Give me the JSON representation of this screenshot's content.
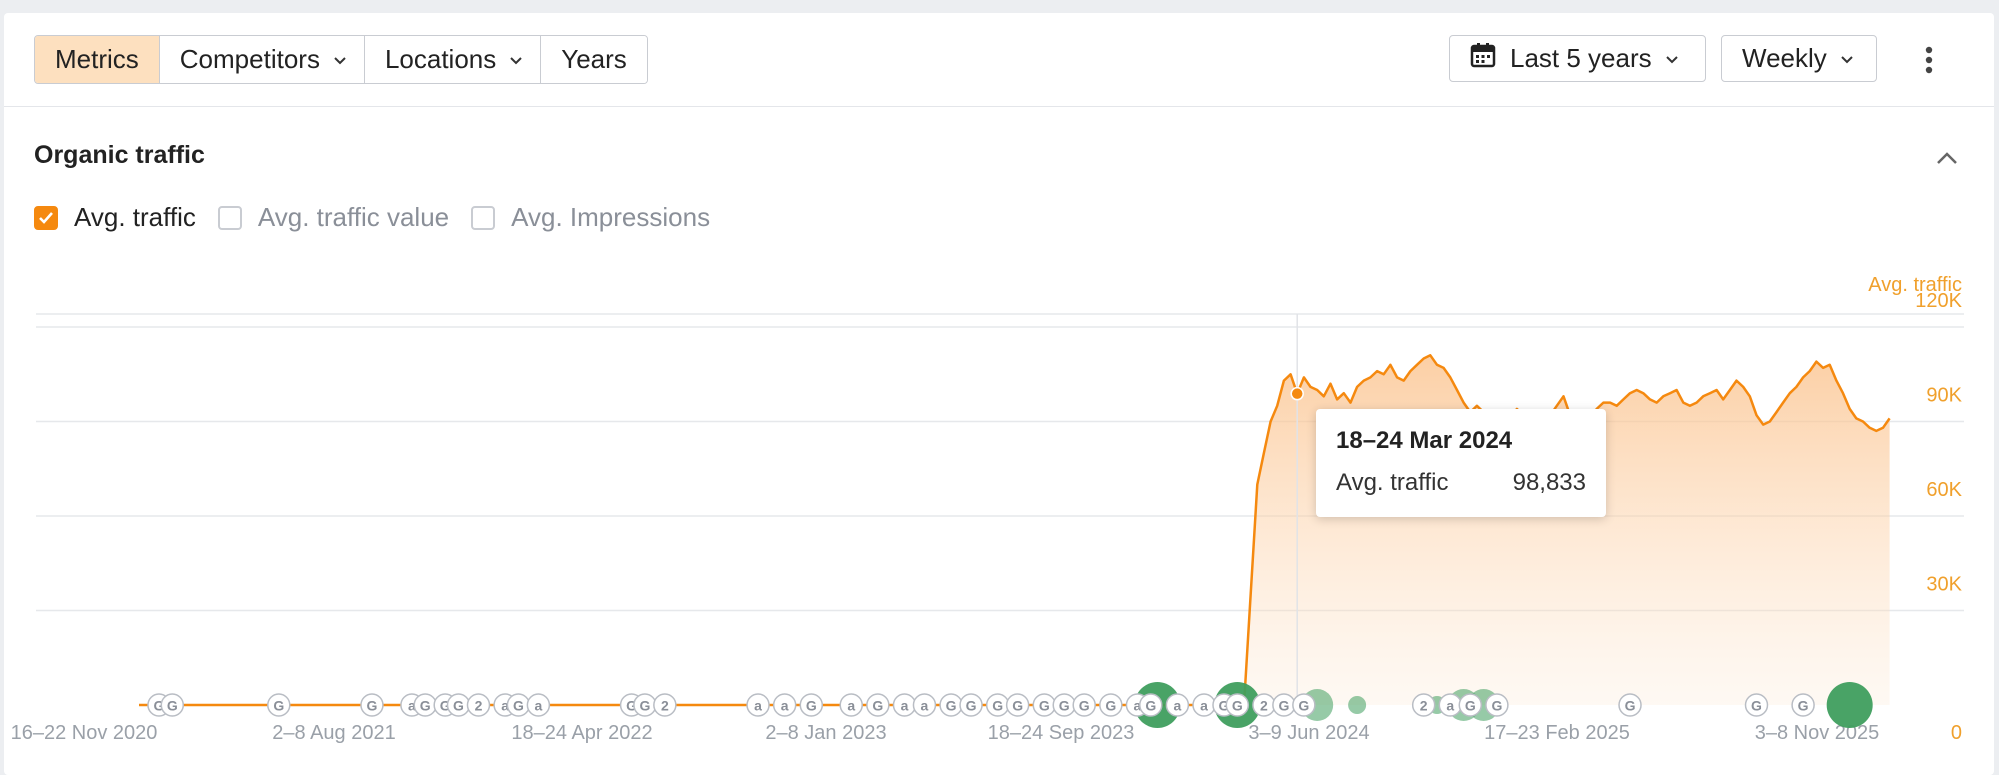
{
  "toolbar": {
    "tabs": [
      {
        "label": "Metrics",
        "active": true,
        "dropdown": false
      },
      {
        "label": "Competitors",
        "active": false,
        "dropdown": true
      },
      {
        "label": "Locations",
        "active": false,
        "dropdown": true
      },
      {
        "label": "Years",
        "active": false,
        "dropdown": false
      }
    ],
    "date_range": "Last 5 years",
    "granularity": "Weekly",
    "more_icon": "kebab-icon"
  },
  "section": {
    "title": "Organic traffic",
    "collapse_icon": "chevron-up-icon"
  },
  "metrics": [
    {
      "label": "Avg. traffic",
      "checked": true
    },
    {
      "label": "Avg. traffic value",
      "checked": false
    },
    {
      "label": "Avg. Impressions",
      "checked": false
    }
  ],
  "tooltip": {
    "date": "18–24 Mar 2024",
    "metric": "Avg. traffic",
    "value": "98,833"
  },
  "colors": {
    "accent": "#f5890f",
    "axis_text": "#f0a02c",
    "marker_gray": "#8a8f98",
    "update_green": "#3f9e5e"
  },
  "chart_data": {
    "type": "area",
    "title": "Organic traffic",
    "series": [
      {
        "name": "Avg. traffic"
      }
    ],
    "ylabel": "Avg. traffic",
    "y_ticks": [
      "120K",
      "90K",
      "60K",
      "30K",
      "0"
    ],
    "ylim": [
      0,
      120000
    ],
    "xlim": [
      "2020-11-16",
      "2025-11-03"
    ],
    "x_ticks": [
      "16–22 Nov 2020",
      "2–8 Aug 2021",
      "18–24 Apr 2022",
      "2–8 Jan 2023",
      "18–24 Sep 2023",
      "3–9 Jun 2024",
      "17–23 Feb 2025",
      "3–8 Nov 2025"
    ],
    "grid": true,
    "points": [
      [
        "2020-11-16",
        0
      ],
      [
        "2023-10-30",
        0
      ],
      [
        "2024-01-01",
        0
      ],
      [
        "2024-01-22",
        0
      ],
      [
        "2024-02-05",
        70000
      ],
      [
        "2024-02-12",
        80000
      ],
      [
        "2024-02-19",
        90000
      ],
      [
        "2024-02-26",
        95000
      ],
      [
        "2024-03-04",
        103000
      ],
      [
        "2024-03-11",
        105000
      ],
      [
        "2024-03-18",
        98833
      ],
      [
        "2024-03-25",
        104000
      ],
      [
        "2024-04-01",
        101000
      ],
      [
        "2024-04-08",
        100000
      ],
      [
        "2024-04-15",
        98000
      ],
      [
        "2024-04-22",
        102000
      ],
      [
        "2024-04-29",
        97000
      ],
      [
        "2024-05-06",
        99000
      ],
      [
        "2024-05-13",
        96000
      ],
      [
        "2024-05-20",
        101000
      ],
      [
        "2024-05-27",
        103000
      ],
      [
        "2024-06-03",
        104000
      ],
      [
        "2024-06-10",
        106000
      ],
      [
        "2024-06-17",
        105000
      ],
      [
        "2024-06-24",
        108000
      ],
      [
        "2024-07-01",
        104000
      ],
      [
        "2024-07-08",
        103000
      ],
      [
        "2024-07-15",
        106000
      ],
      [
        "2024-07-22",
        108000
      ],
      [
        "2024-07-29",
        110000
      ],
      [
        "2024-08-05",
        111000
      ],
      [
        "2024-08-12",
        108000
      ],
      [
        "2024-08-19",
        107000
      ],
      [
        "2024-08-26",
        104000
      ],
      [
        "2024-09-02",
        100000
      ],
      [
        "2024-09-09",
        96000
      ],
      [
        "2024-09-16",
        93000
      ],
      [
        "2024-09-23",
        95000
      ],
      [
        "2024-09-30",
        93000
      ],
      [
        "2024-10-07",
        91000
      ],
      [
        "2024-10-14",
        92000
      ],
      [
        "2024-10-21",
        90000
      ],
      [
        "2024-10-28",
        91000
      ],
      [
        "2024-11-04",
        94000
      ],
      [
        "2024-11-11",
        92000
      ],
      [
        "2024-11-18",
        90000
      ],
      [
        "2024-11-25",
        87000
      ],
      [
        "2024-12-02",
        89000
      ],
      [
        "2024-12-09",
        92000
      ],
      [
        "2024-12-16",
        95000
      ],
      [
        "2024-12-23",
        98000
      ],
      [
        "2024-12-30",
        92000
      ],
      [
        "2025-01-06",
        90000
      ],
      [
        "2025-01-13",
        88000
      ],
      [
        "2025-01-20",
        91000
      ],
      [
        "2025-01-27",
        94000
      ],
      [
        "2025-02-03",
        96000
      ],
      [
        "2025-02-10",
        96000
      ],
      [
        "2025-02-17",
        95000
      ],
      [
        "2025-02-24",
        97000
      ],
      [
        "2025-03-03",
        99000
      ],
      [
        "2025-03-10",
        100000
      ],
      [
        "2025-03-17",
        99000
      ],
      [
        "2025-03-24",
        97000
      ],
      [
        "2025-03-31",
        96000
      ],
      [
        "2025-04-07",
        98000
      ],
      [
        "2025-04-14",
        99000
      ],
      [
        "2025-04-21",
        100000
      ],
      [
        "2025-04-28",
        96000
      ],
      [
        "2025-05-05",
        95000
      ],
      [
        "2025-05-12",
        96000
      ],
      [
        "2025-05-19",
        98000
      ],
      [
        "2025-05-26",
        99000
      ],
      [
        "2025-06-02",
        100000
      ],
      [
        "2025-06-09",
        97000
      ],
      [
        "2025-06-16",
        100000
      ],
      [
        "2025-06-23",
        103000
      ],
      [
        "2025-06-30",
        101000
      ],
      [
        "2025-07-07",
        98000
      ],
      [
        "2025-07-14",
        92000
      ],
      [
        "2025-07-21",
        89000
      ],
      [
        "2025-07-28",
        90000
      ],
      [
        "2025-08-04",
        93000
      ],
      [
        "2025-08-11",
        96000
      ],
      [
        "2025-08-18",
        99000
      ],
      [
        "2025-08-25",
        101000
      ],
      [
        "2025-09-01",
        104000
      ],
      [
        "2025-09-08",
        106000
      ],
      [
        "2025-09-15",
        109000
      ],
      [
        "2025-09-22",
        107000
      ],
      [
        "2025-09-29",
        108000
      ],
      [
        "2025-10-06",
        103000
      ],
      [
        "2025-10-13",
        99000
      ],
      [
        "2025-10-20",
        94000
      ],
      [
        "2025-10-27",
        91000
      ],
      [
        "2025-11-03",
        90000
      ],
      [
        "2025-11-10",
        88000
      ],
      [
        "2025-11-17",
        87000
      ],
      [
        "2025-11-24",
        88000
      ],
      [
        "2025-12-01",
        91000
      ]
    ],
    "highlight": {
      "x": "2024-03-18",
      "y": 98833
    },
    "annotations": [
      {
        "x": "2020-12-07",
        "kind": "G"
      },
      {
        "x": "2020-12-21",
        "kind": "G"
      },
      {
        "x": "2021-04-12",
        "kind": "G"
      },
      {
        "x": "2021-07-19",
        "kind": "G"
      },
      {
        "x": "2021-08-30",
        "kind": "a"
      },
      {
        "x": "2021-09-13",
        "kind": "G"
      },
      {
        "x": "2021-10-04",
        "kind": "G"
      },
      {
        "x": "2021-10-18",
        "kind": "G"
      },
      {
        "x": "2021-11-08",
        "kind": "2"
      },
      {
        "x": "2021-12-06",
        "kind": "a"
      },
      {
        "x": "2021-12-20",
        "kind": "G"
      },
      {
        "x": "2022-01-10",
        "kind": "a"
      },
      {
        "x": "2022-04-18",
        "kind": "G"
      },
      {
        "x": "2022-05-02",
        "kind": "G"
      },
      {
        "x": "2022-05-23",
        "kind": "2"
      },
      {
        "x": "2022-08-29",
        "kind": "a"
      },
      {
        "x": "2022-09-26",
        "kind": "a"
      },
      {
        "x": "2022-10-24",
        "kind": "G"
      },
      {
        "x": "2022-12-05",
        "kind": "a"
      },
      {
        "x": "2023-01-02",
        "kind": "G"
      },
      {
        "x": "2023-01-30",
        "kind": "a"
      },
      {
        "x": "2023-02-20",
        "kind": "a"
      },
      {
        "x": "2023-03-20",
        "kind": "G"
      },
      {
        "x": "2023-04-10",
        "kind": "G"
      },
      {
        "x": "2023-05-08",
        "kind": "G"
      },
      {
        "x": "2023-05-29",
        "kind": "G"
      },
      {
        "x": "2023-06-26",
        "kind": "G"
      },
      {
        "x": "2023-07-17",
        "kind": "G"
      },
      {
        "x": "2023-08-07",
        "kind": "G"
      },
      {
        "x": "2023-09-04",
        "kind": "G"
      },
      {
        "x": "2023-10-02",
        "kind": "a"
      },
      {
        "x": "2023-10-16",
        "kind": "G"
      },
      {
        "x": "2023-11-13",
        "kind": "a"
      },
      {
        "x": "2023-12-11",
        "kind": "a"
      },
      {
        "x": "2024-01-01",
        "kind": "G"
      },
      {
        "x": "2024-01-15",
        "kind": "G"
      },
      {
        "x": "2024-02-12",
        "kind": "2"
      },
      {
        "x": "2024-03-04",
        "kind": "G"
      },
      {
        "x": "2024-03-25",
        "kind": "G"
      },
      {
        "x": "2024-07-29",
        "kind": "2"
      },
      {
        "x": "2024-08-26",
        "kind": "a"
      },
      {
        "x": "2024-09-16",
        "kind": "G"
      },
      {
        "x": "2024-10-14",
        "kind": "G"
      },
      {
        "x": "2025-03-03",
        "kind": "G"
      },
      {
        "x": "2025-07-14",
        "kind": "G"
      },
      {
        "x": "2025-09-01",
        "kind": "G"
      }
    ],
    "updates": [
      {
        "x": "2023-10-23",
        "size": "large"
      },
      {
        "x": "2024-01-15",
        "size": "large"
      },
      {
        "x": "2024-04-08",
        "size": "medium"
      },
      {
        "x": "2024-05-20",
        "size": "small"
      },
      {
        "x": "2024-08-12",
        "size": "small"
      },
      {
        "x": "2024-09-09",
        "size": "medium"
      },
      {
        "x": "2024-09-30",
        "size": "medium"
      },
      {
        "x": "2025-10-20",
        "size": "large"
      }
    ]
  }
}
